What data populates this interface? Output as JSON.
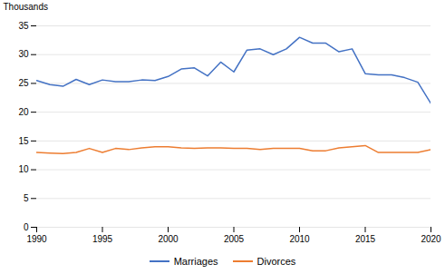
{
  "chart_data": {
    "type": "line",
    "x": [
      1990,
      1991,
      1992,
      1993,
      1994,
      1995,
      1996,
      1997,
      1998,
      1999,
      2000,
      2001,
      2002,
      2003,
      2004,
      2005,
      2006,
      2007,
      2008,
      2009,
      2010,
      2011,
      2012,
      2013,
      2014,
      2015,
      2016,
      2017,
      2018,
      2019,
      2020
    ],
    "series": [
      {
        "name": "Marriages",
        "color": "#4472C4",
        "values": [
          25.5,
          24.8,
          24.5,
          25.7,
          24.8,
          25.6,
          25.3,
          25.3,
          25.6,
          25.5,
          26.2,
          27.5,
          27.7,
          26.3,
          28.7,
          27.0,
          30.8,
          31.0,
          30.0,
          31.0,
          33.0,
          32.0,
          32.0,
          30.5,
          31.0,
          26.7,
          26.5,
          26.5,
          26.0,
          25.2,
          21.5
        ]
      },
      {
        "name": "Divorces",
        "color": "#ED7D31",
        "values": [
          13.0,
          12.9,
          12.8,
          13.0,
          13.7,
          13.0,
          13.7,
          13.5,
          13.8,
          14.0,
          14.0,
          13.8,
          13.7,
          13.8,
          13.8,
          13.7,
          13.7,
          13.5,
          13.7,
          13.7,
          13.7,
          13.3,
          13.3,
          13.8,
          14.0,
          14.2,
          13.0,
          13.0,
          13.0,
          13.0,
          13.5
        ]
      }
    ],
    "xlim": [
      1990,
      2020
    ],
    "xticks": [
      1990,
      1995,
      2000,
      2005,
      2010,
      2015,
      2020
    ],
    "ylim": [
      0,
      35
    ],
    "yticks": [
      0,
      5,
      10,
      15,
      20,
      25,
      30,
      35
    ],
    "ylabel": "Thousands",
    "grid": true,
    "legend": "bottom"
  }
}
